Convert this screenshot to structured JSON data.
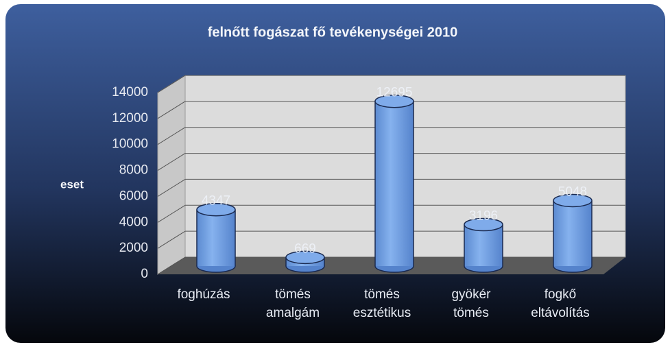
{
  "chart_data": {
    "type": "bar",
    "title": "felnőtt fogászat fő tevékenységei 2010",
    "y_label": "eset",
    "categories": [
      "foghúzás",
      "tömés amalgám",
      "tömés esztétikus",
      "gyökér tömés",
      "fogkő eltávolítás"
    ],
    "values": [
      4347,
      669,
      12695,
      3196,
      5048
    ],
    "color": "#6f9fe0",
    "ylim": [
      0,
      14000
    ],
    "yticks": [
      0,
      2000,
      4000,
      6000,
      8000,
      10000,
      12000,
      14000
    ],
    "grid": true
  }
}
